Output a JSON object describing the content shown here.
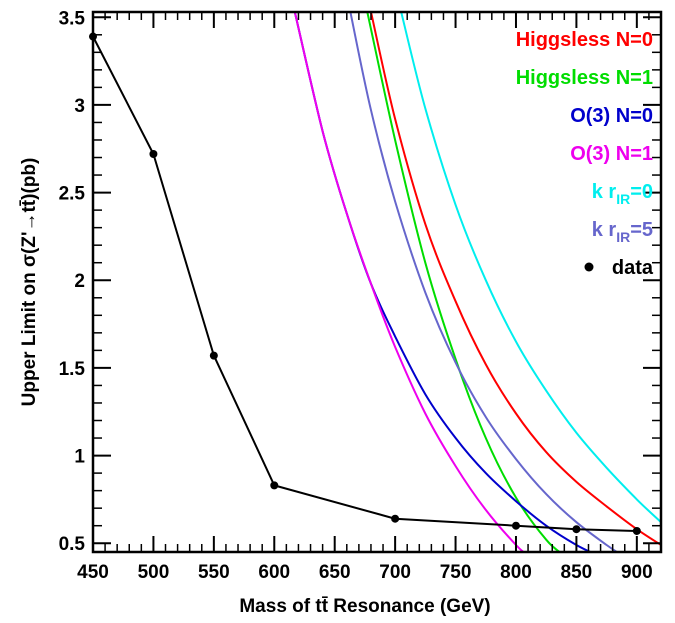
{
  "chart_data": {
    "type": "line",
    "title": "",
    "xlabel": "Mass of tt̄ Resonance (GeV)",
    "ylabel": "Upper Limit on σ(Z'→tt̄)(pb)",
    "xlim": [
      450,
      920
    ],
    "ylim": [
      0.45,
      3.53
    ],
    "x_ticks": [
      450,
      500,
      550,
      600,
      650,
      700,
      750,
      800,
      850,
      900
    ],
    "x_tick_labels": [
      "450",
      "500",
      "550",
      "600",
      "650",
      "700",
      "750",
      "800",
      "850",
      "900"
    ],
    "y_ticks": [
      0.5,
      1,
      1.5,
      2,
      2.5,
      3,
      3.5
    ],
    "y_tick_labels": [
      "0.5",
      "1",
      "1.5",
      "2",
      "2.5",
      "3",
      "3.5"
    ],
    "grid": false,
    "legend_position": "top-right",
    "series": [
      {
        "label": "Higgsless N=0",
        "color": "#ff0000",
        "x": [
          680,
          700,
          725,
          750,
          775,
          800,
          825,
          850,
          875,
          900,
          920
        ],
        "y": [
          3.53,
          2.92,
          2.32,
          1.88,
          1.52,
          1.24,
          1.02,
          0.85,
          0.71,
          0.58,
          0.49
        ]
      },
      {
        "label": "Higgsless N=1",
        "color": "#00dd00",
        "x": [
          677,
          700,
          725,
          750,
          775,
          800,
          825,
          840
        ],
        "y": [
          3.53,
          2.8,
          2.1,
          1.55,
          1.1,
          0.76,
          0.52,
          0.43
        ]
      },
      {
        "label": "O(3) N=0",
        "color": "#0000cc",
        "x": [
          617,
          640,
          660,
          680,
          700,
          725,
          750,
          775,
          800,
          825,
          850,
          868
        ],
        "y": [
          3.53,
          2.85,
          2.38,
          1.98,
          1.68,
          1.35,
          1.1,
          0.9,
          0.74,
          0.6,
          0.49,
          0.43
        ]
      },
      {
        "label": "O(3) N=1",
        "color": "#ee00ee",
        "x": [
          617,
          640,
          660,
          680,
          700,
          725,
          750,
          775,
          800,
          810
        ],
        "y": [
          3.53,
          2.85,
          2.38,
          1.98,
          1.62,
          1.24,
          0.94,
          0.69,
          0.49,
          0.43
        ]
      },
      {
        "label": "k r_IR=0",
        "color": "#00eeee",
        "x": [
          705,
          725,
          750,
          775,
          800,
          825,
          850,
          875,
          900,
          920
        ],
        "y": [
          3.53,
          2.98,
          2.43,
          2.0,
          1.65,
          1.37,
          1.13,
          0.93,
          0.75,
          0.62
        ]
      },
      {
        "label": "k r_IR=5",
        "color": "#6666cc",
        "x": [
          663,
          680,
          700,
          725,
          750,
          775,
          800,
          825,
          850,
          875,
          888
        ],
        "y": [
          3.53,
          2.97,
          2.45,
          1.93,
          1.53,
          1.22,
          0.98,
          0.78,
          0.62,
          0.49,
          0.43
        ]
      }
    ],
    "data_series": {
      "label": "data",
      "color": "#000000",
      "x": [
        450,
        500,
        550,
        600,
        700,
        800,
        850,
        900
      ],
      "y": [
        3.39,
        2.72,
        1.57,
        0.83,
        0.64,
        0.6,
        0.58,
        0.57
      ]
    }
  }
}
